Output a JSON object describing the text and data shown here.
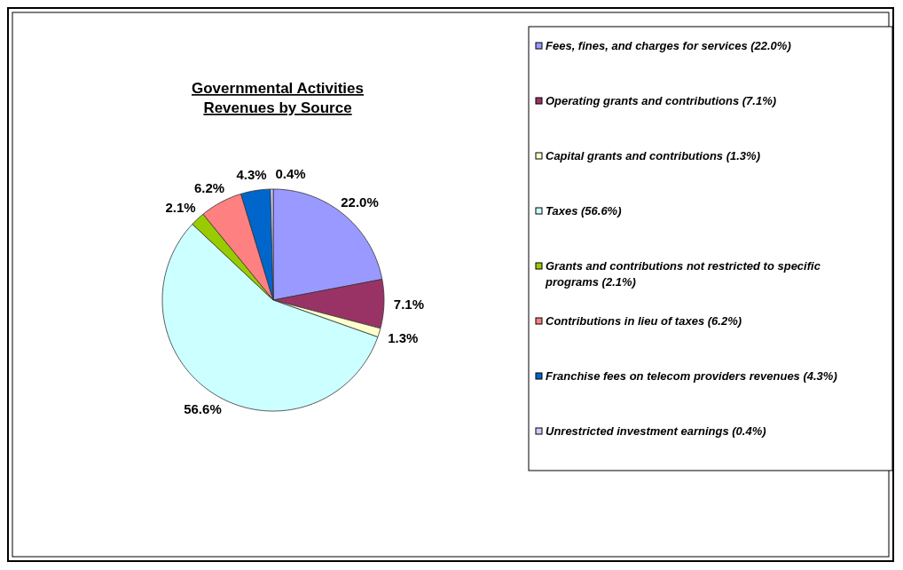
{
  "chart_data": {
    "type": "pie",
    "title": "Governmental Activities\nRevenues by Source",
    "categories": [
      "Fees, fines, and charges for services (22.0%)",
      "Operating grants and contributions (7.1%)",
      "Capital grants and contributions (1.3%)",
      "Taxes (56.6%)",
      "Grants and contributions not restricted to specific programs (2.1%)",
      "Contributions in lieu of taxes (6.2%)",
      "Franchise fees on telecom providers revenues (4.3%)",
      "Unrestricted investment earnings (0.4%)"
    ],
    "values": [
      22.0,
      7.1,
      1.3,
      56.6,
      2.1,
      6.2,
      4.3,
      0.4
    ],
    "value_labels": [
      "22.0%",
      "7.1%",
      "1.3%",
      "56.6%",
      "2.1%",
      "6.2%",
      "4.3%",
      "0.4%"
    ],
    "colors": [
      "#9999ff",
      "#993366",
      "#ffffcc",
      "#ccffff",
      "#99cc00",
      "#ff8080",
      "#0066cc",
      "#ccccff"
    ],
    "legend": "right"
  }
}
